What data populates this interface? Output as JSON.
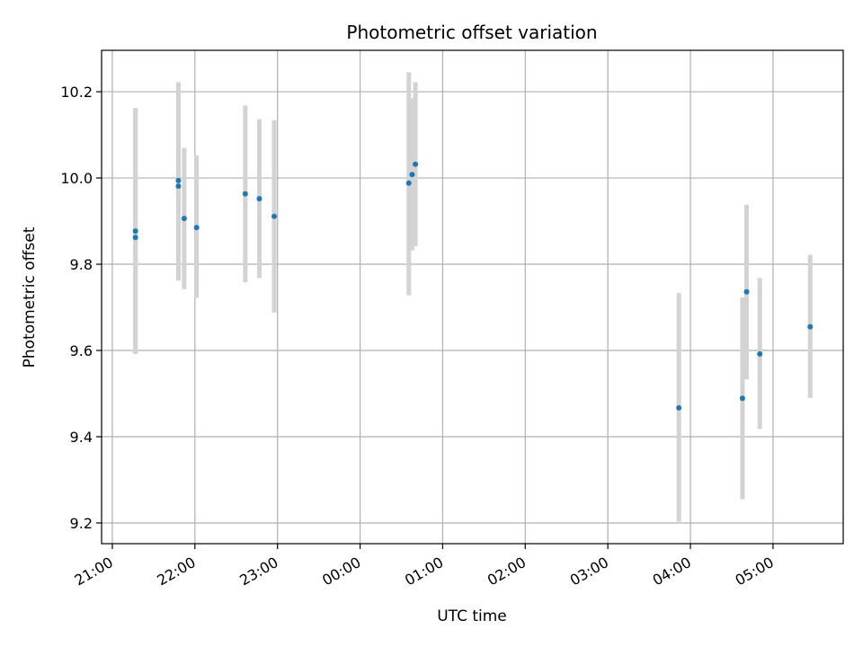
{
  "chart_data": {
    "type": "scatter",
    "title": "Photometric offset variation",
    "xlabel": "UTC time",
    "ylabel": "Photometric offset",
    "x_ticks": [
      "21:00",
      "22:00",
      "23:00",
      "00:00",
      "01:00",
      "02:00",
      "03:00",
      "04:00",
      "05:00"
    ],
    "x_tick_values": [
      21.0,
      22.0,
      23.0,
      24.0,
      25.0,
      26.0,
      27.0,
      28.0,
      29.0
    ],
    "xlim": [
      20.87,
      29.85
    ],
    "y_ticks": [
      "9.2",
      "9.4",
      "9.6",
      "9.8",
      "10.0",
      "10.2"
    ],
    "y_tick_values": [
      9.2,
      9.4,
      9.6,
      9.8,
      10.0,
      10.2
    ],
    "ylim": [
      9.152,
      10.296
    ],
    "grid": true,
    "colors": {
      "points": "#1f77b4",
      "errorbars": "#d3d3d3",
      "grid": "#b0b0b0"
    },
    "series": [
      {
        "x_time": [
          "21:17",
          "21:17",
          "21:48",
          "21:48",
          "21:52",
          "22:01",
          "22:37",
          "22:47",
          "22:58",
          "00:35",
          "00:38",
          "00:40",
          "03:52",
          "04:38",
          "04:41",
          "04:50",
          "05:27"
        ],
        "x": [
          21.28,
          21.28,
          21.8,
          21.8,
          21.87,
          22.02,
          22.61,
          22.78,
          22.96,
          24.59,
          24.63,
          24.67,
          27.86,
          28.63,
          28.68,
          28.84,
          29.45
        ],
        "y": [
          9.877,
          9.862,
          9.994,
          9.981,
          9.906,
          9.885,
          9.963,
          9.952,
          9.911,
          9.988,
          10.008,
          10.032,
          9.467,
          9.489,
          9.736,
          9.592,
          9.655
        ],
        "yerr_low": [
          9.592,
          9.592,
          9.762,
          9.762,
          9.742,
          9.722,
          9.758,
          9.768,
          9.688,
          9.728,
          9.832,
          9.842,
          9.203,
          9.255,
          9.533,
          9.418,
          9.49
        ],
        "yerr_high": [
          10.162,
          10.162,
          10.222,
          10.222,
          10.07,
          10.052,
          10.168,
          10.136,
          10.134,
          10.245,
          10.185,
          10.222,
          9.733,
          9.723,
          9.938,
          9.768,
          9.822
        ]
      }
    ]
  }
}
